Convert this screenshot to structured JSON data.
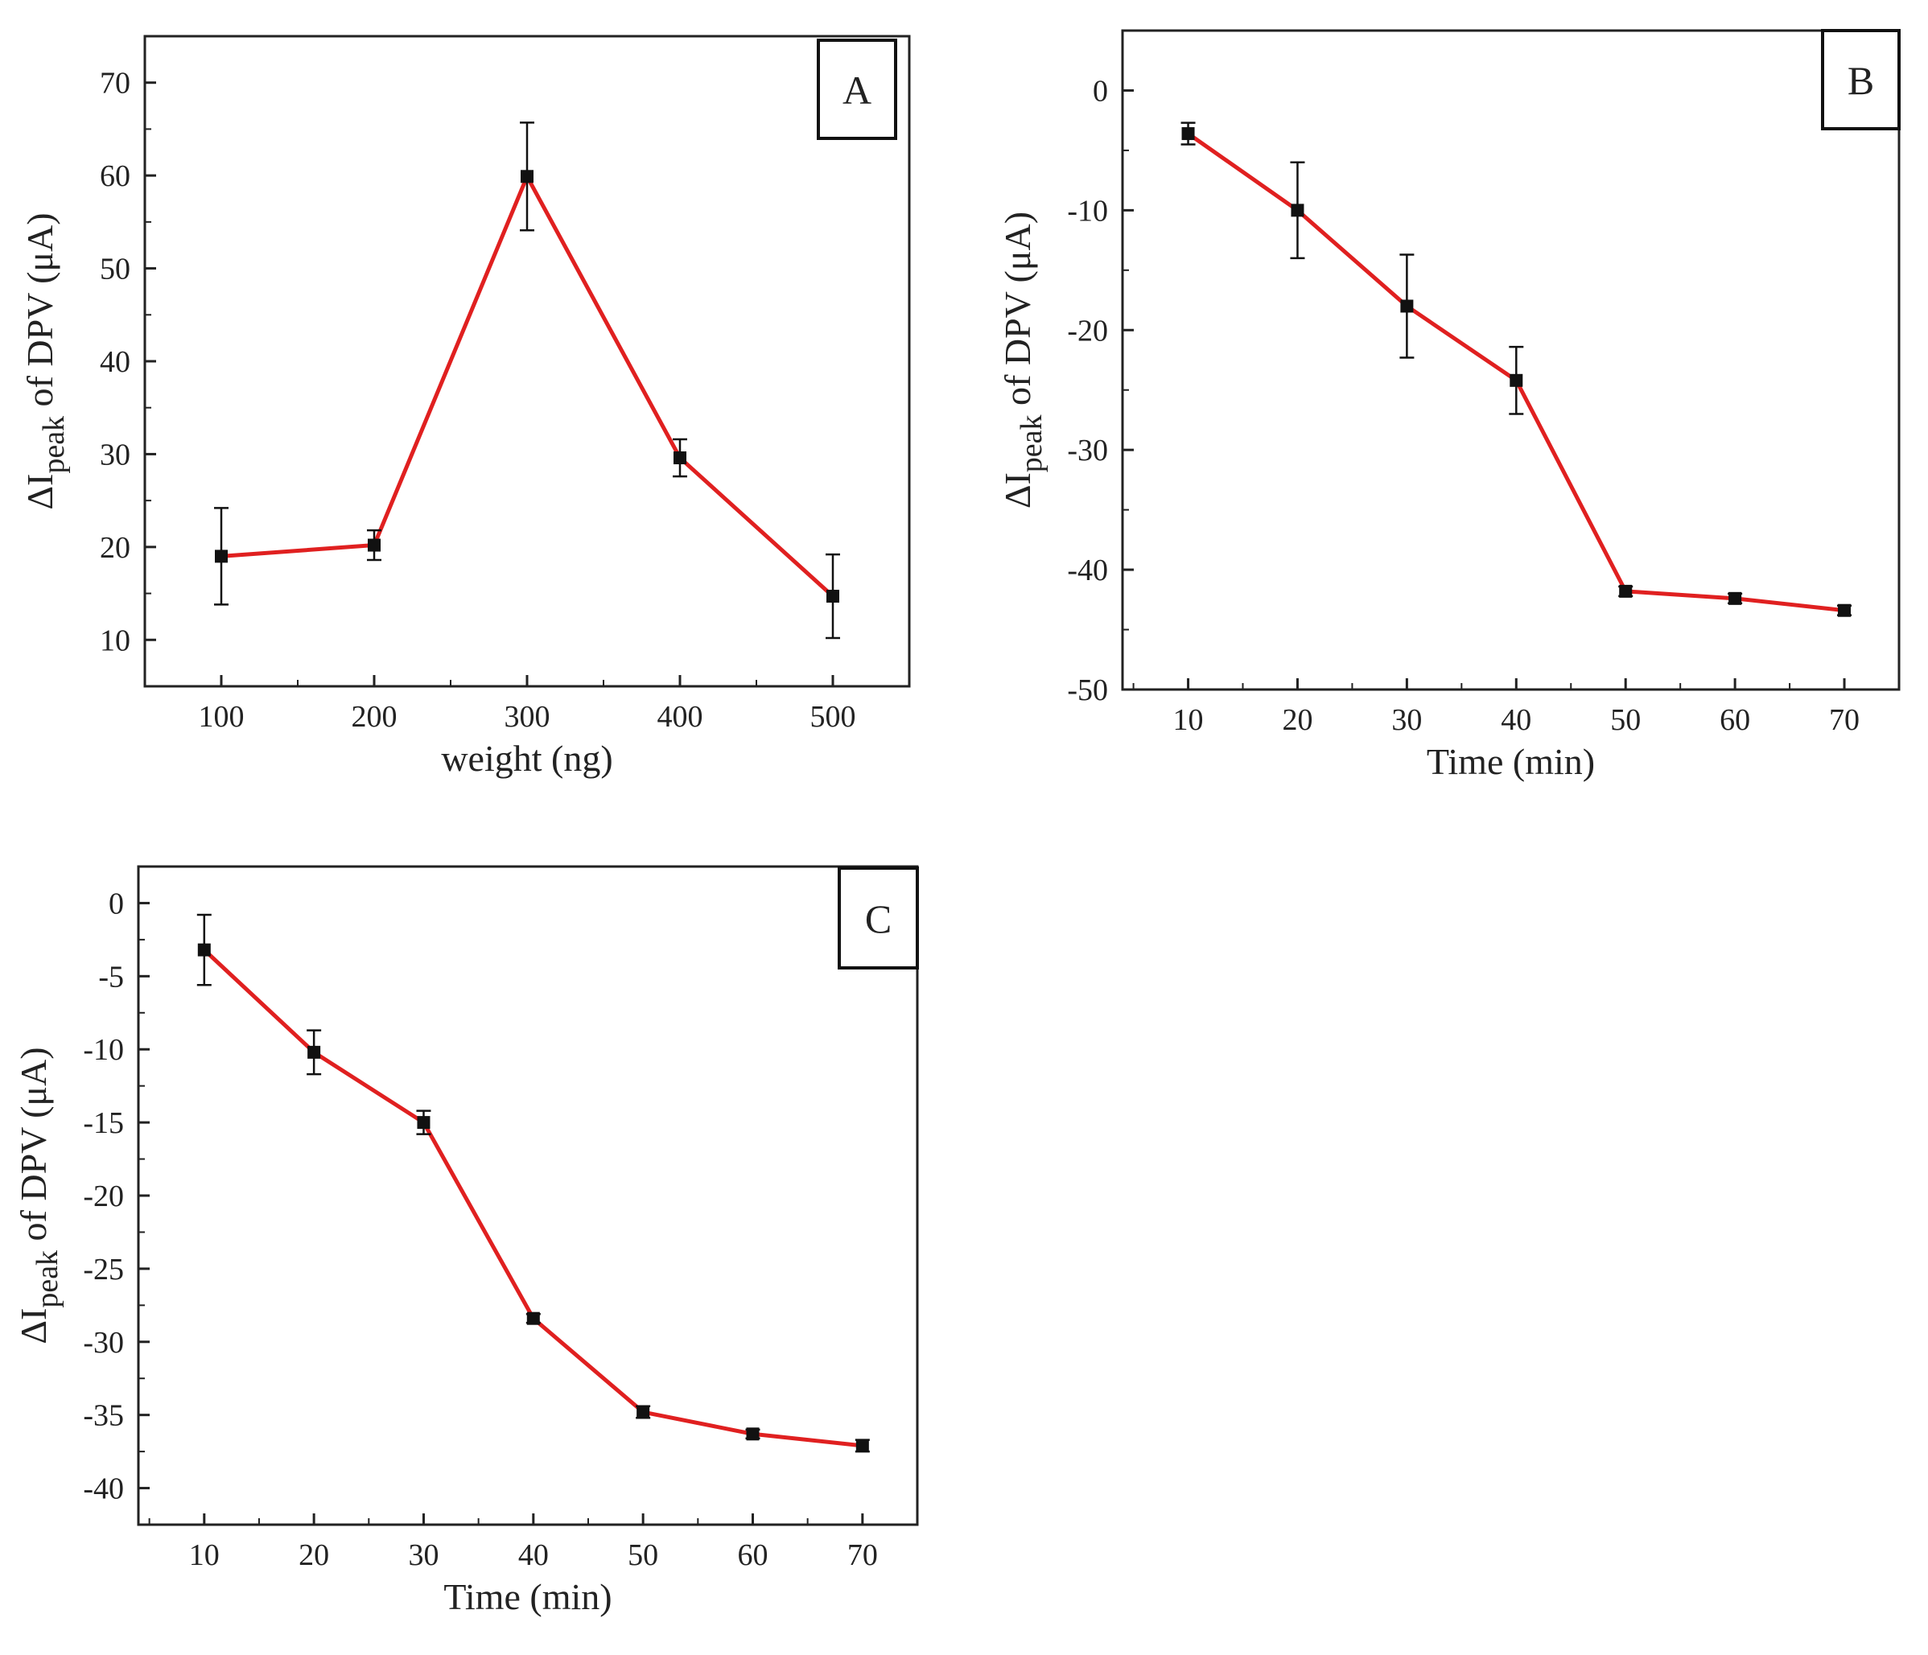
{
  "figure": {
    "line_color": "#e02020",
    "marker_color": "#111111",
    "axis_color": "#222222"
  },
  "chart_data": [
    {
      "id": "A",
      "type": "line",
      "panel_label": "A",
      "xlabel": "weight (ng)",
      "ylabel_main": "ΔI",
      "ylabel_sub": "peak",
      "ylabel_rest": " of DPV (μA)",
      "xlim": [
        50,
        550
      ],
      "ylim": [
        5,
        75
      ],
      "x_ticks": [
        100,
        200,
        300,
        400,
        500
      ],
      "x_tick_labels": [
        "100",
        "200",
        "300",
        "400",
        "500"
      ],
      "y_ticks": [
        10,
        20,
        30,
        40,
        50,
        60,
        70
      ],
      "y_tick_labels": [
        "10",
        "20",
        "30",
        "40",
        "50",
        "60",
        "70"
      ],
      "series": [
        {
          "name": "ΔIpeak",
          "x": [
            100,
            200,
            300,
            400,
            500
          ],
          "y": [
            19,
            20.2,
            59.9,
            29.6,
            14.7
          ],
          "error": [
            5.2,
            1.6,
            5.8,
            2.0,
            4.5
          ]
        }
      ]
    },
    {
      "id": "B",
      "type": "line",
      "panel_label": "B",
      "xlabel": "Time (min)",
      "ylabel_main": "ΔI",
      "ylabel_sub": "peak",
      "ylabel_rest": " of DPV (μA)",
      "xlim": [
        4,
        75
      ],
      "ylim": [
        -50,
        5
      ],
      "x_ticks": [
        10,
        20,
        30,
        40,
        50,
        60,
        70
      ],
      "x_tick_labels": [
        "10",
        "20",
        "30",
        "40",
        "50",
        "60",
        "70"
      ],
      "y_ticks": [
        0,
        -10,
        -20,
        -30,
        -40,
        -50
      ],
      "y_tick_labels": [
        "0",
        "-10",
        "-20",
        "-30",
        "-40",
        "-50"
      ],
      "series": [
        {
          "name": "ΔIpeak",
          "x": [
            10,
            20,
            30,
            40,
            50,
            60,
            70
          ],
          "y": [
            -3.6,
            -10,
            -18,
            -24.2,
            -41.8,
            -42.4,
            -43.4
          ],
          "error": [
            0.9,
            4.0,
            4.3,
            2.8,
            0.4,
            0.4,
            0.4
          ]
        }
      ]
    },
    {
      "id": "C",
      "type": "line",
      "panel_label": "C",
      "xlabel": "Time (min)",
      "ylabel_main": "ΔI",
      "ylabel_sub": "peak",
      "ylabel_rest": " of DPV (μA)",
      "xlim": [
        4,
        75
      ],
      "ylim": [
        -42.5,
        2.5
      ],
      "x_ticks": [
        10,
        20,
        30,
        40,
        50,
        60,
        70
      ],
      "x_tick_labels": [
        "10",
        "20",
        "30",
        "40",
        "50",
        "60",
        "70"
      ],
      "y_ticks": [
        0,
        -5,
        -10,
        -15,
        -20,
        -25,
        -30,
        -35,
        -40
      ],
      "y_tick_labels": [
        "0",
        "-5",
        "-10",
        "-15",
        "-20",
        "-25",
        "-30",
        "-35",
        "-40"
      ],
      "series": [
        {
          "name": "ΔIpeak",
          "x": [
            10,
            20,
            30,
            40,
            50,
            60,
            70
          ],
          "y": [
            -3.2,
            -10.2,
            -15,
            -28.4,
            -34.8,
            -36.3,
            -37.1
          ],
          "error": [
            2.4,
            1.5,
            0.8,
            0.3,
            0.4,
            0.3,
            0.4
          ]
        }
      ]
    }
  ]
}
